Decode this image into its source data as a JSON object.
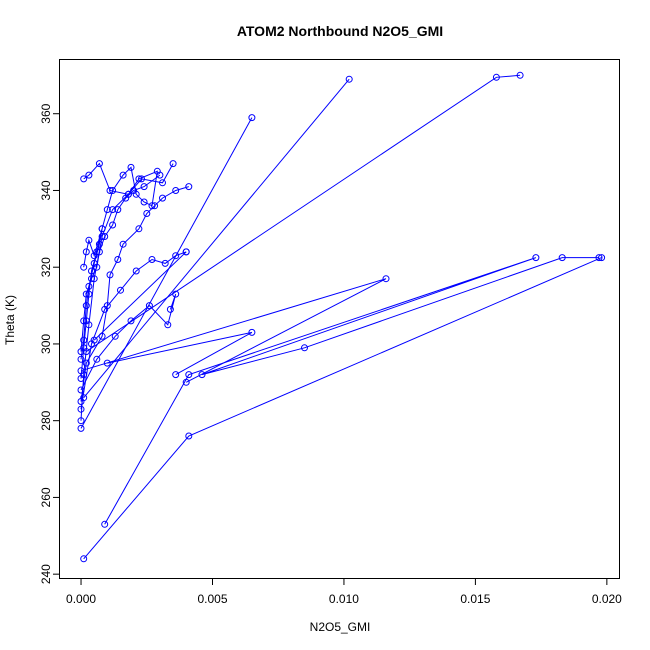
{
  "chart_data": {
    "type": "line",
    "title": "ATOM2 Northbound N2O5_GMI",
    "xlabel": "N2O5_GMI",
    "ylabel": "Theta (K)",
    "xlim": [
      -0.0008,
      0.0205
    ],
    "ylim": [
      239,
      374
    ],
    "xticks": [
      {
        "value": 0.0,
        "label": "0.000"
      },
      {
        "value": 0.005,
        "label": "0.005"
      },
      {
        "value": 0.01,
        "label": "0.010"
      },
      {
        "value": 0.015,
        "label": "0.015"
      },
      {
        "value": 0.02,
        "label": "0.020"
      }
    ],
    "yticks": [
      {
        "value": 240,
        "label": "240"
      },
      {
        "value": 260,
        "label": "260"
      },
      {
        "value": 280,
        "label": "280"
      },
      {
        "value": 300,
        "label": "300"
      },
      {
        "value": 320,
        "label": "320"
      },
      {
        "value": 340,
        "label": "340"
      },
      {
        "value": 360,
        "label": "360"
      }
    ],
    "grid": false,
    "legend": "none",
    "color": "#0000ff",
    "marker": "open-circle",
    "series": [
      {
        "x": [
          0.0,
          0.0002,
          0.0008,
          0.001,
          0.0011,
          0.0014,
          0.0016,
          0.0022,
          0.0025,
          0.0028,
          0.0031,
          0.0036,
          0.0041
        ],
        "y": [
          285,
          295,
          302,
          310,
          318,
          322,
          326,
          330,
          334,
          336,
          338,
          340,
          341
        ]
      },
      {
        "x": [
          0.0,
          0.0001,
          0.0003,
          0.0005,
          0.0008,
          0.0012,
          0.0018,
          0.0023,
          0.0031,
          0.0035
        ],
        "y": [
          280,
          292,
          305,
          317,
          328,
          335,
          339,
          343,
          342,
          347
        ]
      },
      {
        "x": [
          0.0,
          0.0004,
          0.0009,
          0.0015,
          0.0021,
          0.0027,
          0.0032,
          0.0036,
          0.004
        ],
        "y": [
          283,
          300,
          309,
          314,
          319,
          322,
          321,
          323,
          324
        ]
      },
      {
        "x": [
          0.0,
          0.0006,
          0.0013,
          0.0019,
          0.0026,
          0.0033,
          0.0036,
          0.0034
        ],
        "y": [
          288,
          296,
          302,
          306,
          310,
          305,
          313,
          309
        ]
      },
      {
        "x": [
          0.0,
          0.0001,
          0.0002,
          0.0003,
          0.0004,
          0.0006,
          0.0008,
          0.001,
          0.0012,
          0.0016,
          0.0019,
          0.0021,
          0.0024,
          0.0027,
          0.0029,
          0.0022,
          0.0018,
          0.0011,
          0.0007,
          0.0003,
          0.0001
        ],
        "y": [
          291,
          299,
          306,
          313,
          319,
          324,
          330,
          335,
          340,
          344,
          346,
          339,
          337,
          336,
          345,
          343,
          339,
          340,
          347,
          344,
          343
        ]
      },
      {
        "x": [
          0.0,
          0.0001,
          0.0002,
          0.0004,
          0.0006,
          0.0007,
          0.0009,
          0.0012,
          0.0014,
          0.0017,
          0.002,
          0.0024,
          0.003
        ],
        "y": [
          298,
          306,
          313,
          317,
          320,
          324,
          328,
          331,
          335,
          338,
          340,
          341,
          344
        ]
      },
      {
        "x": [
          0.0,
          0.0001,
          0.0002,
          0.0003,
          0.0005,
          0.0007,
          0.0008,
          0.0005,
          0.0003,
          0.0002,
          0.0001
        ],
        "y": [
          296,
          301,
          310,
          315,
          321,
          326,
          330,
          323,
          327,
          324,
          320
        ]
      },
      {
        "x": [
          0.0,
          0.0065
        ],
        "y": [
          278,
          359
        ]
      },
      {
        "x": [
          0.0001,
          0.0102
        ],
        "y": [
          286,
          369
        ]
      },
      {
        "x": [
          0.0002,
          0.0158,
          0.0167
        ],
        "y": [
          298,
          369.5,
          370
        ]
      },
      {
        "x": [
          0.0005,
          0.004
        ],
        "y": [
          301,
          324
        ]
      },
      {
        "x": [
          0.0,
          0.0116,
          0.004
        ],
        "y": [
          293,
          317,
          290
        ]
      },
      {
        "x": [
          0.001,
          0.0065,
          0.0036
        ],
        "y": [
          295,
          303,
          292
        ]
      },
      {
        "x": [
          0.0009,
          0.0041,
          0.0173,
          0.0046,
          0.0085,
          0.0183,
          0.0197
        ],
        "y": [
          253,
          292,
          322.5,
          292,
          299,
          322.5,
          322.5
        ]
      },
      {
        "x": [
          0.0001,
          0.0041,
          0.0198
        ],
        "y": [
          244,
          276,
          322.5
        ]
      }
    ]
  }
}
